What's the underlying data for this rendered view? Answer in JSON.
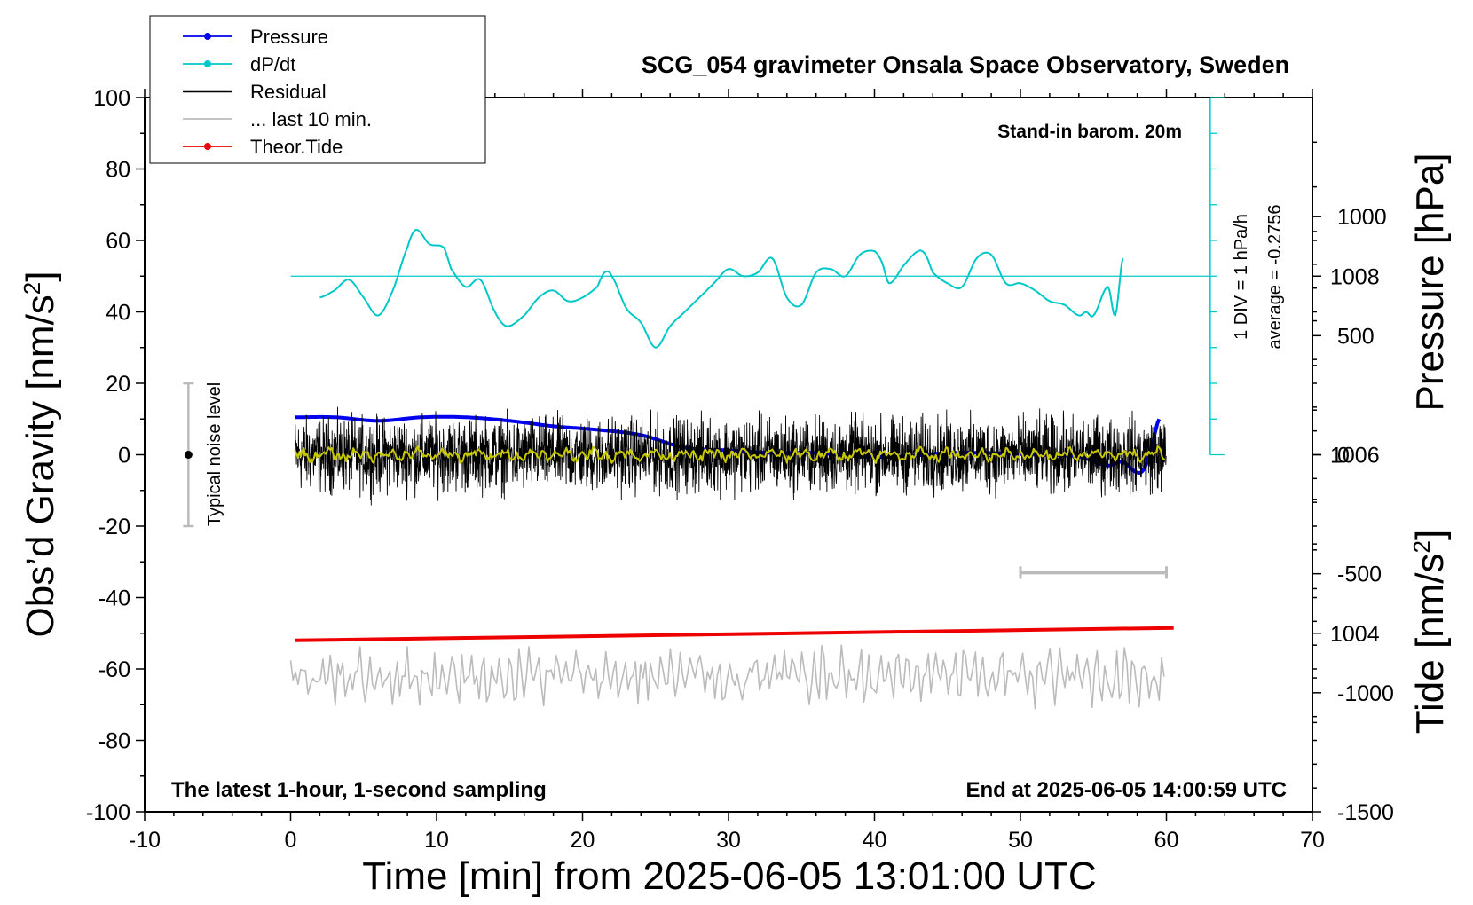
{
  "chart_data": {
    "type": "line",
    "title": "SCG_054 gravimeter Onsala Space Observatory, Sweden",
    "xlabel": "Time [min] from 2025-06-05 13:01:00 UTC",
    "ylabel_left": "Obs’d Gravity [nm/s",
    "ylabel_left_sup": "2",
    "ylabel_left_close": "]",
    "ylabel_right_pressure": "Pressure [hPa]",
    "ylabel_right_tide": "Tide [nm/s",
    "ylabel_right_tide_sup": "2",
    "ylabel_right_tide_close": "]",
    "xlim": [
      -10,
      70
    ],
    "ylim": [
      -100,
      100
    ],
    "x_ticks": [
      "-10",
      "0",
      "10",
      "20",
      "30",
      "40",
      "50",
      "60",
      "70"
    ],
    "y_ticks": [
      "100",
      "80",
      "60",
      "40",
      "20",
      "0",
      "-20",
      "-40",
      "-60",
      "-80",
      "-100"
    ],
    "pressure_axis": {
      "range": [
        1002,
        1010
      ],
      "ticks": [
        "1008",
        "1006",
        "1004"
      ]
    },
    "tide_axis": {
      "range": [
        -1500,
        1500
      ],
      "ticks": [
        "1000",
        "500",
        "0",
        "-500",
        "-1000",
        "-1500"
      ]
    },
    "grid": false,
    "legend_position": "top-left",
    "legend": [
      {
        "label": "Pressure",
        "color": "#0000ee",
        "marker": true
      },
      {
        "label": "dP/dt",
        "color": "#00c8c8",
        "marker": true
      },
      {
        "label": "Residual",
        "color": "#000000",
        "marker": false
      },
      {
        "label": "... last 10 min.",
        "color": "#bbbbbb",
        "marker": false
      },
      {
        "label": "Theor.Tide",
        "color": "#ee0000",
        "marker": true
      }
    ],
    "annotations": {
      "barometer": "Stand-in barom. 20m",
      "dpdt_scale": "1 DIV = 1 hPa/h",
      "dpdt_average": "average = -0.2756",
      "noise": "Typical noise level",
      "sampling": "The latest 1-hour, 1-second sampling",
      "end_time": "End at 2025-06-05 14:00:59 UTC"
    },
    "noise_bar": {
      "x": -7,
      "y_low": -20,
      "y_high": 20,
      "center": 0
    },
    "last10_span": [
      50,
      60
    ],
    "series": [
      {
        "name": "Pressure",
        "unit": "hPa",
        "x": [
          0.3,
          3,
          6,
          9,
          12,
          15,
          18,
          21,
          24,
          27,
          30,
          33,
          36,
          39,
          42,
          45,
          48,
          51,
          54,
          56,
          57,
          58,
          58.5,
          59,
          59.5
        ],
        "values": [
          1006.42,
          1006.42,
          1006.38,
          1006.42,
          1006.42,
          1006.38,
          1006.32,
          1006.28,
          1006.22,
          1006.08,
          1006.05,
          1006.02,
          1006.02,
          1005.98,
          1005.98,
          1006.02,
          1006.02,
          1006.0,
          1005.98,
          1005.88,
          1005.92,
          1005.8,
          1005.85,
          1006.1,
          1006.4
        ]
      },
      {
        "name": "dP/dt",
        "unit": "nm/s2",
        "x": [
          2,
          3,
          4,
          5,
          6,
          7,
          8,
          8.6,
          9.5,
          10.5,
          11,
          12,
          13,
          14,
          14.8,
          16,
          17,
          18,
          19,
          20,
          21,
          21.5,
          22,
          23,
          24,
          25,
          26,
          27,
          28,
          29,
          30,
          31,
          32,
          33,
          34,
          35,
          36,
          37,
          38,
          39,
          40,
          40.5,
          41,
          42,
          43,
          43.5,
          44,
          45,
          46,
          47,
          48,
          49,
          50,
          51,
          52,
          53,
          54,
          54.5,
          55,
          56,
          56.5,
          57
        ],
        "values": [
          44,
          46,
          49,
          44,
          39,
          46,
          58,
          63,
          59,
          58,
          52,
          47,
          49,
          40,
          36,
          39,
          44,
          46,
          43,
          44,
          47,
          51,
          50,
          41,
          37,
          30,
          36,
          40,
          44,
          48,
          52,
          50,
          51,
          55,
          44,
          42,
          51,
          52,
          50,
          56,
          57,
          54,
          48,
          53,
          57,
          56,
          51,
          48,
          47,
          55,
          56,
          48,
          48,
          46,
          43,
          42,
          39,
          40,
          39,
          47,
          39,
          55
        ]
      },
      {
        "name": "Residual",
        "x_range": [
          0.3,
          60
        ],
        "amplitude": 9,
        "mean": 0
      },
      {
        "name": "Smoothed residual",
        "x_range": [
          0.3,
          60
        ],
        "amplitude": 2,
        "mean": 0
      },
      {
        "name": "... last 10 min.",
        "x_range": [
          0,
          60
        ],
        "amplitude": 8,
        "mean": -62
      },
      {
        "name": "Theor.Tide",
        "unit": "nm/s2",
        "x": [
          0.3,
          60.5
        ],
        "values": [
          -52,
          -48.5
        ]
      }
    ],
    "dpdt_reference": {
      "y": 50,
      "x_range": [
        0,
        63
      ],
      "axis_x": 63,
      "y_range": [
        0,
        100
      ],
      "divisions": 10
    }
  }
}
